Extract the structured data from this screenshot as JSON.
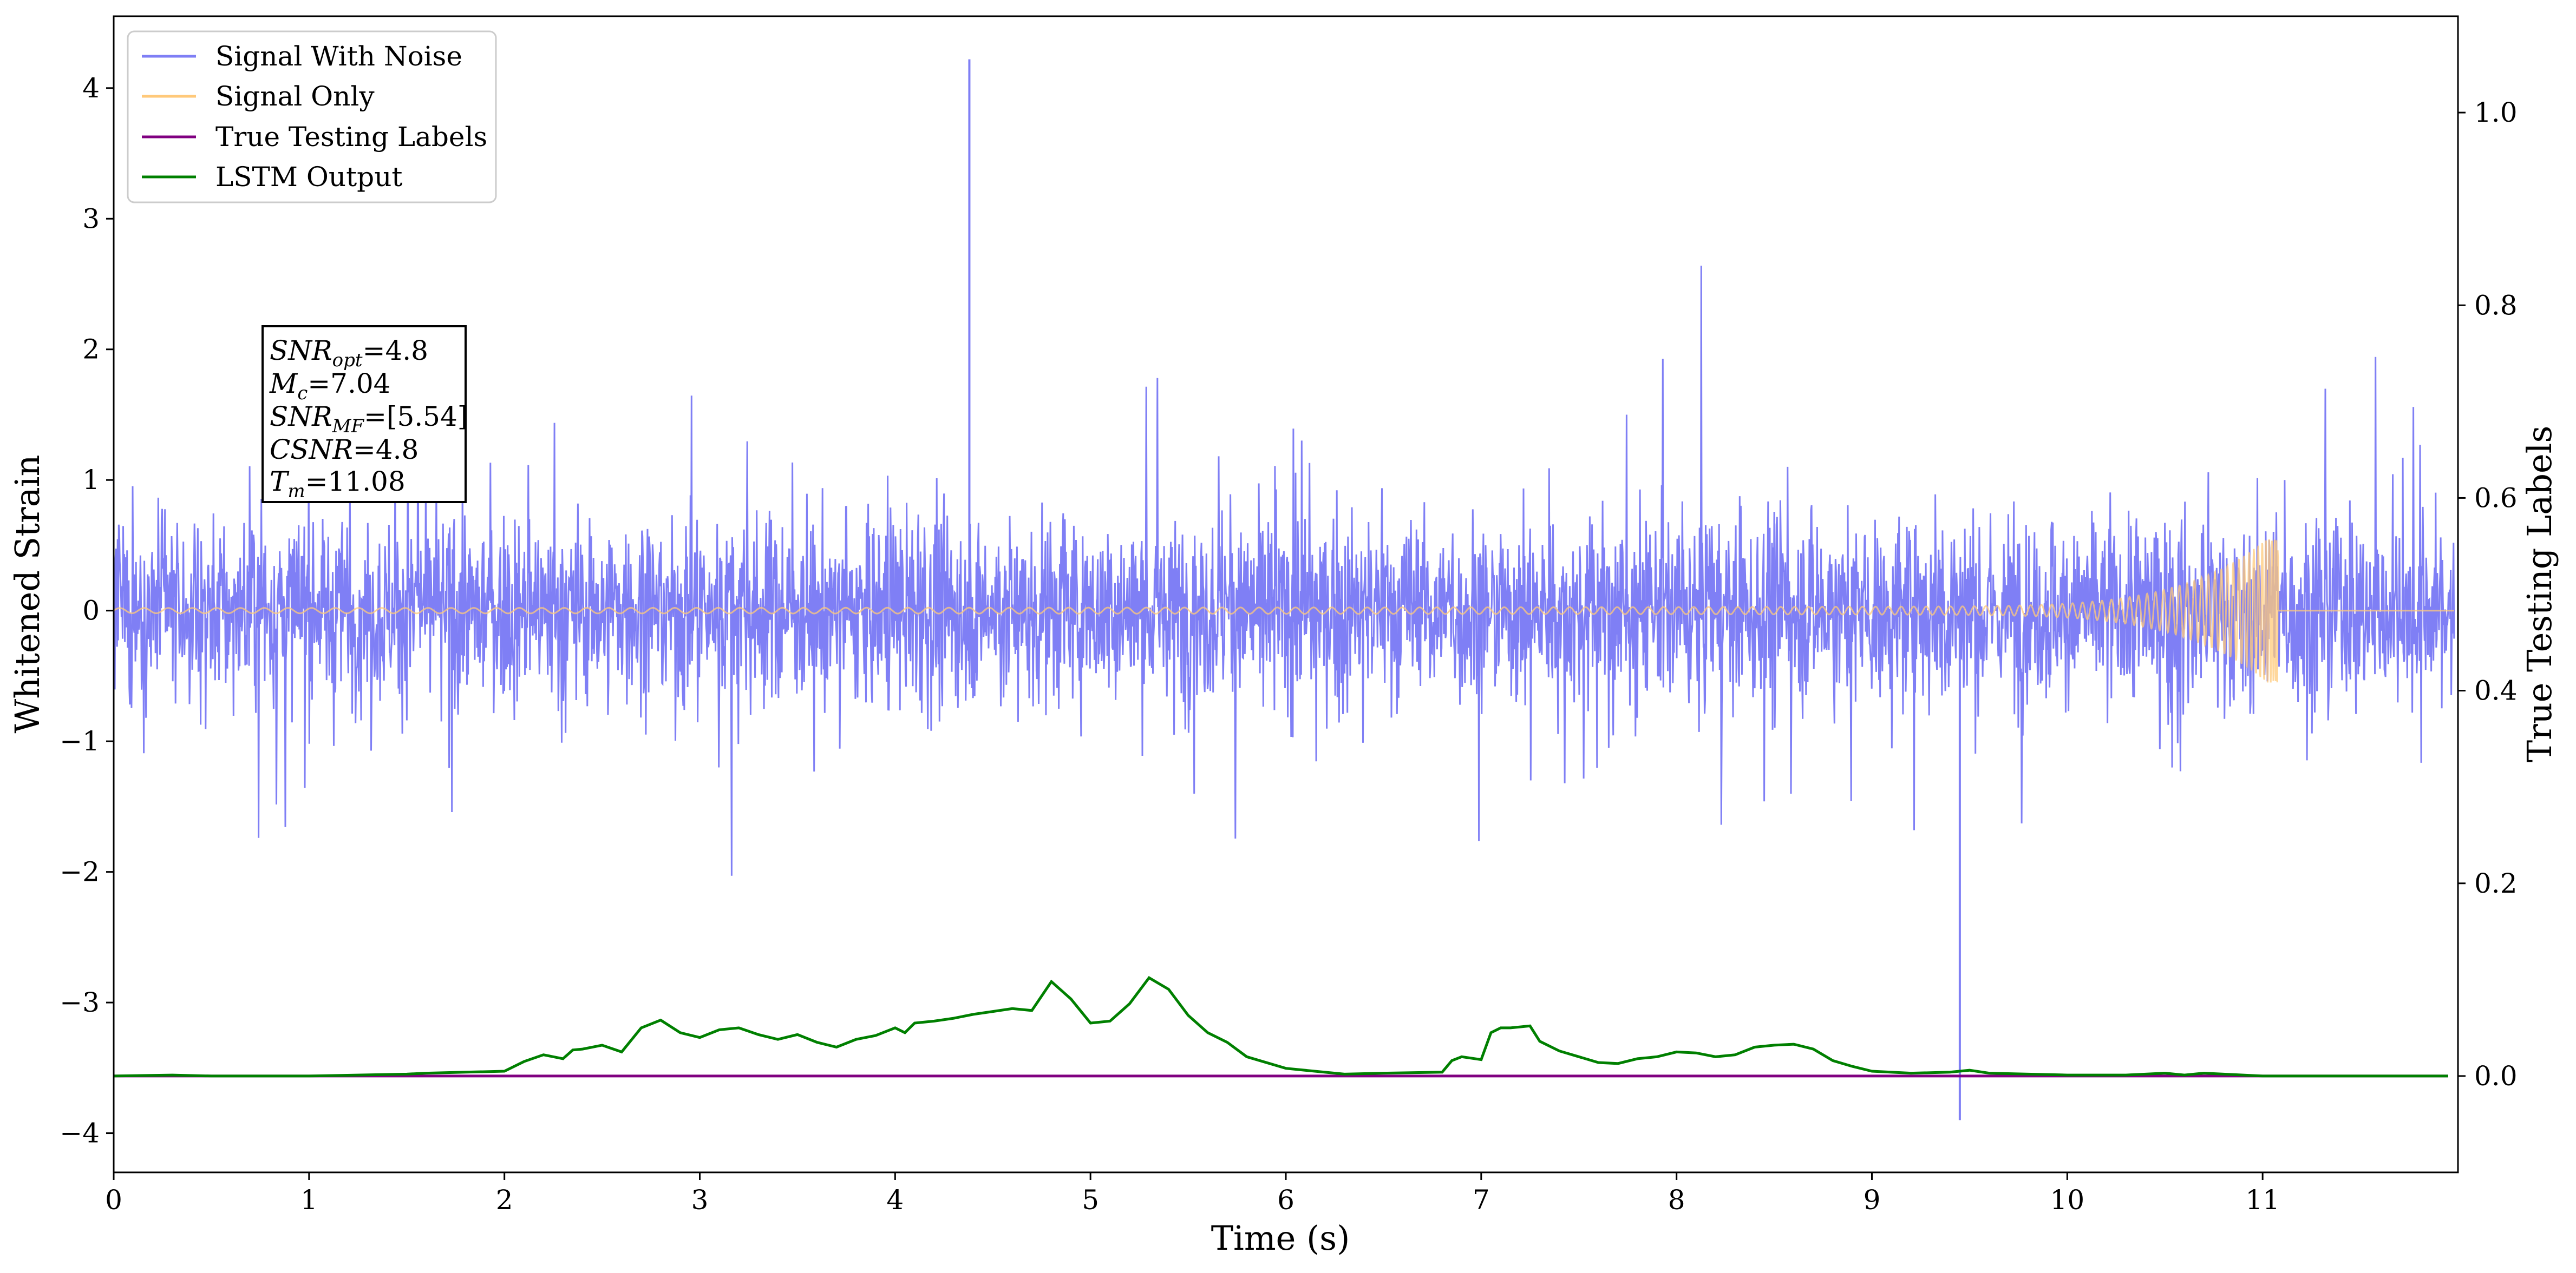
{
  "chart_data": {
    "type": "line",
    "xlabel": "Time (s)",
    "ylabel": "Whitened Strain",
    "ylabel_right": "True Testing Labels",
    "xlim": [
      0,
      12.0
    ],
    "ylim": [
      -4.3,
      4.55
    ],
    "ylim_right": [
      -0.1,
      1.1
    ],
    "x_ticks": [
      0,
      1,
      2,
      3,
      4,
      5,
      6,
      7,
      8,
      9,
      10,
      11
    ],
    "y_ticks": [
      4,
      3,
      2,
      1,
      0,
      -1,
      -2,
      -3,
      -4
    ],
    "y_tick_labels": [
      "4",
      "3",
      "2",
      "1",
      "0",
      "−1",
      "−2",
      "−3",
      "−4"
    ],
    "y_right_ticks": [
      1.0,
      0.8,
      0.6,
      0.4,
      0.2,
      0.0
    ],
    "y_right_tick_labels": [
      "1.0",
      "0.8",
      "0.6",
      "0.4",
      "0.2",
      "0.0"
    ],
    "grid": false,
    "legend_position": "top-left",
    "series": [
      {
        "name": "Signal With Noise",
        "color": "#7f7ff5",
        "axis": "left",
        "description_values": {
          "x_range": [
            0,
            11.98
          ],
          "typical_band": [
            -1.2,
            1.2
          ],
          "max": 4.22,
          "max_at": 4.38,
          "min": -3.9,
          "min_at": 9.45
        }
      },
      {
        "name": "Signal Only",
        "color": "#ffc97a",
        "axis": "left",
        "chirp": {
          "t_merge": 11.08,
          "start_amplitude": 0.02,
          "peak_amplitude": 0.55
        }
      },
      {
        "name": "True Testing Labels",
        "color": "#800080",
        "axis": "right",
        "x": [
          0,
          11.95
        ],
        "y": [
          0.0,
          0.0
        ]
      },
      {
        "name": "LSTM Output",
        "color": "#008000",
        "axis": "right",
        "x": [
          0,
          0.3,
          0.5,
          1.0,
          1.5,
          1.6,
          1.8,
          2.0,
          2.1,
          2.2,
          2.3,
          2.35,
          2.4,
          2.5,
          2.6,
          2.7,
          2.8,
          2.9,
          3.0,
          3.1,
          3.2,
          3.3,
          3.4,
          3.5,
          3.6,
          3.7,
          3.8,
          3.9,
          4.0,
          4.05,
          4.1,
          4.2,
          4.3,
          4.4,
          4.5,
          4.6,
          4.7,
          4.8,
          4.9,
          5.0,
          5.1,
          5.2,
          5.3,
          5.4,
          5.5,
          5.6,
          5.7,
          5.8,
          6.0,
          6.3,
          6.5,
          6.8,
          6.85,
          6.9,
          7.0,
          7.05,
          7.1,
          7.15,
          7.25,
          7.3,
          7.4,
          7.5,
          7.6,
          7.7,
          7.8,
          7.9,
          8.0,
          8.1,
          8.2,
          8.3,
          8.4,
          8.5,
          8.6,
          8.7,
          8.8,
          8.9,
          9.0,
          9.2,
          9.4,
          9.5,
          9.6,
          9.8,
          10.0,
          10.3,
          10.5,
          10.6,
          10.7,
          10.8,
          11.0,
          11.2,
          11.95
        ],
        "y": [
          0.0,
          0.001,
          0.0,
          0.0,
          0.002,
          0.003,
          0.004,
          0.005,
          0.015,
          0.022,
          0.018,
          0.027,
          0.028,
          0.032,
          0.025,
          0.05,
          0.058,
          0.045,
          0.04,
          0.048,
          0.05,
          0.043,
          0.038,
          0.043,
          0.035,
          0.03,
          0.038,
          0.042,
          0.05,
          0.045,
          0.055,
          0.057,
          0.06,
          0.064,
          0.067,
          0.07,
          0.068,
          0.098,
          0.08,
          0.055,
          0.057,
          0.075,
          0.102,
          0.09,
          0.063,
          0.045,
          0.035,
          0.02,
          0.008,
          0.002,
          0.003,
          0.004,
          0.016,
          0.02,
          0.017,
          0.045,
          0.05,
          0.05,
          0.052,
          0.036,
          0.026,
          0.02,
          0.014,
          0.013,
          0.018,
          0.02,
          0.025,
          0.024,
          0.02,
          0.022,
          0.03,
          0.032,
          0.033,
          0.028,
          0.016,
          0.01,
          0.005,
          0.003,
          0.004,
          0.006,
          0.003,
          0.002,
          0.001,
          0.001,
          0.003,
          0.001,
          0.003,
          0.002,
          0.0,
          0.0,
          0.0
        ]
      }
    ],
    "annotation": {
      "lines": [
        {
          "key": "SNR",
          "sub": "opt",
          "value": "=4.8"
        },
        {
          "key": "M",
          "sub": "c",
          "value": "=7.04"
        },
        {
          "key": "SNR",
          "sub": "MF",
          "value": "=[5.54]"
        },
        {
          "key": "CSNR",
          "sub": "",
          "value": "=4.8"
        },
        {
          "key": "T",
          "sub": "m",
          "value": "=11.08"
        }
      ]
    }
  }
}
